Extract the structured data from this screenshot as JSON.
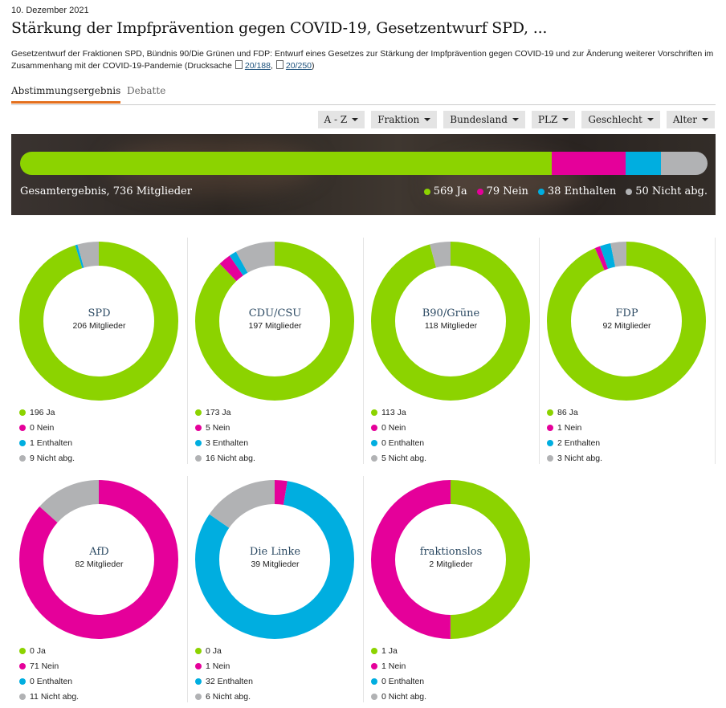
{
  "date": "10. Dezember 2021",
  "title": "Stärkung der Impfprävention gegen COVID-19, Gesetzentwurf SPD, ...",
  "description": "Gesetzentwurf der Fraktionen SPD, Bündnis 90/Die Grünen und FDP: Entwurf eines Gesetzes zur Stärkung der Impfprävention gegen COVID-19 und zur Änderung weiterer Vorschriften im Zusammenhang mit der COVID-19-Pandemie (Drucksache",
  "doc_links": [
    "20/188",
    "20/250"
  ],
  "doc_sep": ",",
  "doc_close": ")",
  "tabs": {
    "active": "Abstimmungsergebnis",
    "inactive": "Debatte"
  },
  "filters": [
    "A - Z",
    "Fraktion",
    "Bundesland",
    "PLZ",
    "Geschlecht",
    "Alter"
  ],
  "colors": {
    "ja": "#8cd300",
    "nein": "#e5009a",
    "enthalten": "#00aee0",
    "nicht": "#b1b2b4"
  },
  "chart_data": [
    {
      "type": "bar",
      "title": "Gesamtergebnis, 736 Mitglieder",
      "categories": [
        "Ja",
        "Nein",
        "Enthalten",
        "Nicht abg."
      ],
      "values": [
        569,
        79,
        38,
        50
      ],
      "labels": [
        "569 Ja",
        "79 Nein",
        "38 Enthalten",
        "50 Nicht abg."
      ]
    },
    {
      "type": "pie",
      "title": "SPD",
      "subtitle": "206 Mitglieder",
      "categories": [
        "Ja",
        "Nein",
        "Enthalten",
        "Nicht abg."
      ],
      "values": [
        196,
        0,
        1,
        9
      ],
      "labels": [
        "196 Ja",
        "0 Nein",
        "1 Enthalten",
        "9 Nicht abg."
      ]
    },
    {
      "type": "pie",
      "title": "CDU/CSU",
      "subtitle": "197 Mitglieder",
      "categories": [
        "Ja",
        "Nein",
        "Enthalten",
        "Nicht abg."
      ],
      "values": [
        173,
        5,
        3,
        16
      ],
      "labels": [
        "173 Ja",
        "5 Nein",
        "3 Enthalten",
        "16 Nicht abg."
      ]
    },
    {
      "type": "pie",
      "title": "B90/Grüne",
      "subtitle": "118 Mitglieder",
      "categories": [
        "Ja",
        "Nein",
        "Enthalten",
        "Nicht abg."
      ],
      "values": [
        113,
        0,
        0,
        5
      ],
      "labels": [
        "113 Ja",
        "0 Nein",
        "0 Enthalten",
        "5 Nicht abg."
      ]
    },
    {
      "type": "pie",
      "title": "FDP",
      "subtitle": "92 Mitglieder",
      "categories": [
        "Ja",
        "Nein",
        "Enthalten",
        "Nicht abg."
      ],
      "values": [
        86,
        1,
        2,
        3
      ],
      "labels": [
        "86 Ja",
        "1 Nein",
        "2 Enthalten",
        "3 Nicht abg."
      ]
    },
    {
      "type": "pie",
      "title": "AfD",
      "subtitle": "82 Mitglieder",
      "categories": [
        "Ja",
        "Nein",
        "Enthalten",
        "Nicht abg."
      ],
      "values": [
        0,
        71,
        0,
        11
      ],
      "labels": [
        "0 Ja",
        "71 Nein",
        "0 Enthalten",
        "11 Nicht abg."
      ]
    },
    {
      "type": "pie",
      "title": "Die Linke",
      "subtitle": "39 Mitglieder",
      "categories": [
        "Ja",
        "Nein",
        "Enthalten",
        "Nicht abg."
      ],
      "values": [
        0,
        1,
        32,
        6
      ],
      "labels": [
        "0 Ja",
        "1 Nein",
        "32 Enthalten",
        "6 Nicht abg."
      ]
    },
    {
      "type": "pie",
      "title": "fraktionslos",
      "subtitle": "2 Mitglieder",
      "categories": [
        "Ja",
        "Nein",
        "Enthalten",
        "Nicht abg."
      ],
      "values": [
        1,
        1,
        0,
        0
      ],
      "labels": [
        "1 Ja",
        "1 Nein",
        "0 Enthalten",
        "0 Nicht abg."
      ]
    }
  ]
}
